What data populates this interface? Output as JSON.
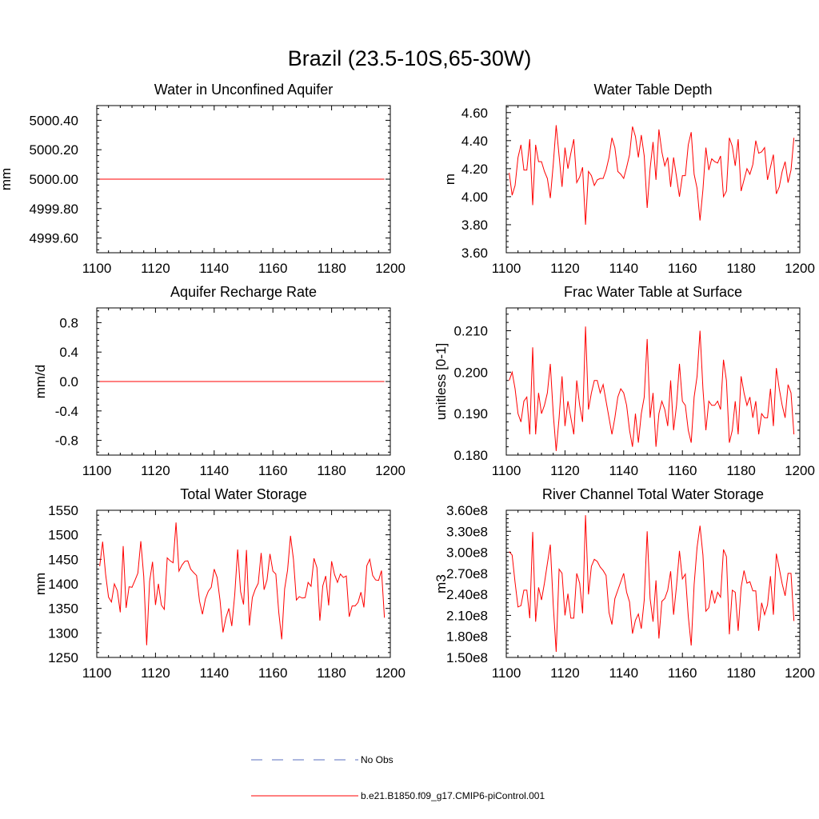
{
  "figure_title": "Brazil (23.5-10S,65-30W)",
  "colors": {
    "model": "#ff0000",
    "obs": "#5a6fbf",
    "axis": "#000000"
  },
  "legend": {
    "obs_label": "No Obs",
    "model_label": "b.e21.B1850.f09_g17.CMIP6-piControl.001"
  },
  "chart_data": [
    {
      "type": "line",
      "title": "Water in Unconfined Aquifer",
      "xlabel": "",
      "ylabel": "mm",
      "xlim": [
        1100,
        1200
      ],
      "ylim": [
        4999.5,
        5000.5
      ],
      "xticks": [
        1100,
        1120,
        1140,
        1160,
        1180,
        1200
      ],
      "xtick_labels": [
        "1100",
        "1120",
        "1140",
        "1160",
        "1180",
        "1200"
      ],
      "yticks": [
        4999.6,
        4999.8,
        5000.0,
        5000.2,
        5000.4
      ],
      "ytick_labels": [
        "4999.60",
        "4999.80",
        "5000.00",
        "5000.20",
        "5000.40"
      ],
      "x_start": 1101,
      "series": [
        {
          "name": "b.e21.B1850.f09_g17.CMIP6-piControl.001",
          "values": [
            5000,
            5000,
            5000,
            5000,
            5000,
            5000,
            5000,
            5000,
            5000,
            5000,
            5000,
            5000,
            5000,
            5000,
            5000,
            5000,
            5000,
            5000,
            5000,
            5000,
            5000,
            5000,
            5000,
            5000,
            5000,
            5000,
            5000,
            5000,
            5000,
            5000,
            5000,
            5000,
            5000,
            5000,
            5000,
            5000,
            5000,
            5000,
            5000,
            5000,
            5000,
            5000,
            5000,
            5000,
            5000,
            5000,
            5000,
            5000,
            5000,
            5000,
            5000,
            5000,
            5000,
            5000,
            5000,
            5000,
            5000,
            5000,
            5000,
            5000,
            5000,
            5000,
            5000,
            5000,
            5000,
            5000,
            5000,
            5000,
            5000,
            5000,
            5000,
            5000,
            5000,
            5000,
            5000,
            5000,
            5000,
            5000,
            5000,
            5000,
            5000,
            5000,
            5000,
            5000,
            5000,
            5000,
            5000,
            5000,
            5000,
            5000,
            5000,
            5000,
            5000,
            5000,
            5000,
            5000,
            5000,
            5000
          ]
        }
      ]
    },
    {
      "type": "line",
      "title": "Water Table Depth",
      "xlabel": "",
      "ylabel": "m",
      "xlim": [
        1100,
        1200
      ],
      "ylim": [
        3.6,
        4.65
      ],
      "xticks": [
        1100,
        1120,
        1140,
        1160,
        1180,
        1200
      ],
      "xtick_labels": [
        "1100",
        "1120",
        "1140",
        "1160",
        "1180",
        "1200"
      ],
      "yticks": [
        3.6,
        3.8,
        4.0,
        4.2,
        4.4,
        4.6
      ],
      "ytick_labels": [
        "3.60",
        "3.80",
        "4.00",
        "4.20",
        "4.40",
        "4.60"
      ],
      "x_start": 1101,
      "series": [
        {
          "name": "b.e21.B1850.f09_g17.CMIP6-piControl.001",
          "values": [
            4.17,
            4.01,
            4.08,
            4.28,
            4.37,
            4.19,
            4.19,
            4.41,
            3.94,
            4.37,
            4.25,
            4.25,
            4.18,
            4.13,
            3.99,
            4.23,
            4.51,
            4.29,
            4.07,
            4.35,
            4.2,
            4.31,
            4.41,
            4.1,
            4.14,
            4.21,
            3.8,
            4.18,
            4.15,
            4.08,
            4.12,
            4.13,
            4.13,
            4.19,
            4.28,
            4.42,
            4.35,
            4.18,
            4.16,
            4.13,
            4.21,
            4.3,
            4.5,
            4.43,
            4.28,
            4.44,
            4.29,
            3.92,
            4.2,
            4.39,
            4.12,
            4.48,
            4.32,
            4.22,
            4.28,
            4.07,
            4.28,
            4.14,
            4.0,
            4.15,
            4.15,
            4.37,
            4.46,
            4.16,
            4.06,
            3.83,
            4.05,
            4.35,
            4.19,
            4.27,
            4.25,
            4.24,
            4.29,
            4.0,
            4.04,
            4.42,
            4.36,
            4.22,
            4.41,
            4.04,
            4.12,
            4.2,
            4.16,
            4.23,
            4.4,
            4.31,
            4.32,
            4.35,
            4.12,
            4.21,
            4.3,
            4.02,
            4.07,
            4.18,
            4.25,
            4.1,
            4.19,
            4.42
          ]
        }
      ]
    },
    {
      "type": "line",
      "title": "Aquifer Recharge Rate",
      "xlabel": "",
      "ylabel": "mm/d",
      "xlim": [
        1100,
        1200
      ],
      "ylim": [
        -1.0,
        1.0
      ],
      "xticks": [
        1100,
        1120,
        1140,
        1160,
        1180,
        1200
      ],
      "xtick_labels": [
        "1100",
        "1120",
        "1140",
        "1160",
        "1180",
        "1200"
      ],
      "yticks": [
        -0.8,
        -0.4,
        0.0,
        0.4,
        0.8
      ],
      "ytick_labels": [
        "-0.8",
        "-0.4",
        "0.0",
        "0.4",
        "0.8"
      ],
      "x_start": 1101,
      "series": [
        {
          "name": "b.e21.B1850.f09_g17.CMIP6-piControl.001",
          "values": [
            0,
            0,
            0,
            0,
            0,
            0,
            0,
            0,
            0,
            0,
            0,
            0,
            0,
            0,
            0,
            0,
            0,
            0,
            0,
            0,
            0,
            0,
            0,
            0,
            0,
            0,
            0,
            0,
            0,
            0,
            0,
            0,
            0,
            0,
            0,
            0,
            0,
            0,
            0,
            0,
            0,
            0,
            0,
            0,
            0,
            0,
            0,
            0,
            0,
            0,
            0,
            0,
            0,
            0,
            0,
            0,
            0,
            0,
            0,
            0,
            0,
            0,
            0,
            0,
            0,
            0,
            0,
            0,
            0,
            0,
            0,
            0,
            0,
            0,
            0,
            0,
            0,
            0,
            0,
            0,
            0,
            0,
            0,
            0,
            0,
            0,
            0,
            0,
            0,
            0,
            0,
            0,
            0,
            0,
            0,
            0,
            0,
            0
          ]
        }
      ]
    },
    {
      "type": "line",
      "title": "Frac Water Table at Surface",
      "xlabel": "",
      "ylabel": "unitless [0-1]",
      "xlim": [
        1100,
        1200
      ],
      "ylim": [
        0.18,
        0.2155
      ],
      "xticks": [
        1100,
        1120,
        1140,
        1160,
        1180,
        1200
      ],
      "xtick_labels": [
        "1100",
        "1120",
        "1140",
        "1160",
        "1180",
        "1200"
      ],
      "yticks": [
        0.18,
        0.19,
        0.2,
        0.21
      ],
      "ytick_labels": [
        "0.180",
        "0.190",
        "0.200",
        "0.210"
      ],
      "x_start": 1101,
      "series": [
        {
          "name": "b.e21.B1850.f09_g17.CMIP6-piControl.001",
          "values": [
            0.198,
            0.2,
            0.196,
            0.19,
            0.188,
            0.193,
            0.194,
            0.185,
            0.206,
            0.185,
            0.195,
            0.19,
            0.192,
            0.195,
            0.202,
            0.19,
            0.181,
            0.189,
            0.199,
            0.187,
            0.193,
            0.189,
            0.185,
            0.198,
            0.192,
            0.188,
            0.211,
            0.191,
            0.195,
            0.198,
            0.198,
            0.195,
            0.197,
            0.193,
            0.189,
            0.185,
            0.189,
            0.194,
            0.196,
            0.195,
            0.192,
            0.186,
            0.182,
            0.19,
            0.183,
            0.19,
            0.194,
            0.208,
            0.189,
            0.195,
            0.182,
            0.19,
            0.193,
            0.191,
            0.187,
            0.198,
            0.186,
            0.192,
            0.202,
            0.193,
            0.192,
            0.186,
            0.183,
            0.194,
            0.199,
            0.21,
            0.196,
            0.186,
            0.193,
            0.192,
            0.192,
            0.193,
            0.191,
            0.203,
            0.198,
            0.183,
            0.186,
            0.193,
            0.185,
            0.199,
            0.195,
            0.192,
            0.194,
            0.189,
            0.193,
            0.185,
            0.19,
            0.189,
            0.189,
            0.196,
            0.187,
            0.201,
            0.196,
            0.192,
            0.189,
            0.197,
            0.195,
            0.185
          ]
        }
      ]
    },
    {
      "type": "line",
      "title": "Total Water Storage",
      "xlabel": "",
      "ylabel": "mm",
      "xlim": [
        1100,
        1200
      ],
      "ylim": [
        1250,
        1550
      ],
      "xticks": [
        1100,
        1120,
        1140,
        1160,
        1180,
        1200
      ],
      "xtick_labels": [
        "1100",
        "1120",
        "1140",
        "1160",
        "1180",
        "1200"
      ],
      "yticks": [
        1250,
        1300,
        1350,
        1400,
        1450,
        1500,
        1550
      ],
      "ytick_labels": [
        "1250",
        "1300",
        "1350",
        "1400",
        "1450",
        "1500",
        "1550"
      ],
      "x_start": 1101,
      "series": [
        {
          "name": "b.e21.B1850.f09_g17.CMIP6-piControl.001",
          "values": [
            1436,
            1486,
            1420,
            1373,
            1363,
            1400,
            1386,
            1342,
            1477,
            1351,
            1394,
            1393,
            1407,
            1422,
            1487,
            1415,
            1275,
            1405,
            1445,
            1357,
            1400,
            1357,
            1348,
            1453,
            1447,
            1443,
            1525,
            1426,
            1438,
            1446,
            1447,
            1430,
            1423,
            1417,
            1365,
            1338,
            1369,
            1385,
            1393,
            1430,
            1413,
            1366,
            1301,
            1331,
            1350,
            1314,
            1378,
            1470,
            1384,
            1358,
            1469,
            1315,
            1372,
            1389,
            1401,
            1463,
            1388,
            1408,
            1461,
            1426,
            1420,
            1342,
            1287,
            1390,
            1428,
            1498,
            1450,
            1367,
            1374,
            1371,
            1372,
            1403,
            1395,
            1452,
            1433,
            1325,
            1396,
            1416,
            1356,
            1446,
            1419,
            1403,
            1420,
            1413,
            1416,
            1333,
            1355,
            1355,
            1362,
            1383,
            1352,
            1437,
            1450,
            1417,
            1408,
            1407,
            1427,
            1331
          ]
        }
      ]
    },
    {
      "type": "line",
      "title": "River Channel Total Water Storage",
      "xlabel": "",
      "ylabel": "m3",
      "xlim": [
        1100,
        1200
      ],
      "ylim": [
        150000000,
        360000000
      ],
      "xticks": [
        1100,
        1120,
        1140,
        1160,
        1180,
        1200
      ],
      "xtick_labels": [
        "1100",
        "1120",
        "1140",
        "1160",
        "1180",
        "1200"
      ],
      "yticks": [
        150000000,
        180000000,
        210000000,
        240000000,
        270000000,
        300000000,
        330000000,
        360000000
      ],
      "ytick_labels": [
        "1.50e8",
        "1.80e8",
        "2.10e8",
        "2.40e8",
        "2.70e8",
        "3.00e8",
        "3.30e8",
        "3.60e8"
      ],
      "x_start": 1101,
      "series": [
        {
          "name": "b.e21.B1850.f09_g17.CMIP6-piControl.001",
          "values": [
            301000000,
            296000000,
            257000000,
            222000000,
            224000000,
            246000000,
            246000000,
            206000000,
            329000000,
            201000000,
            250000000,
            232000000,
            256000000,
            284000000,
            311000000,
            225000000,
            158000000,
            276000000,
            270000000,
            210000000,
            241000000,
            206000000,
            206000000,
            270000000,
            256000000,
            213000000,
            353000000,
            240000000,
            280000000,
            290000000,
            287000000,
            279000000,
            274000000,
            267000000,
            214000000,
            197000000,
            234000000,
            246000000,
            258000000,
            270000000,
            243000000,
            229000000,
            184000000,
            203000000,
            212000000,
            191000000,
            232000000,
            330000000,
            234000000,
            201000000,
            260000000,
            177000000,
            230000000,
            234000000,
            246000000,
            273000000,
            211000000,
            252000000,
            302000000,
            262000000,
            269000000,
            209000000,
            167000000,
            254000000,
            307000000,
            338000000,
            296000000,
            216000000,
            221000000,
            246000000,
            227000000,
            243000000,
            236000000,
            304000000,
            294000000,
            183000000,
            246000000,
            243000000,
            188000000,
            250000000,
            274000000,
            256000000,
            258000000,
            245000000,
            245000000,
            188000000,
            228000000,
            211000000,
            225000000,
            266000000,
            211000000,
            298000000,
            277000000,
            255000000,
            238000000,
            270000000,
            270000000,
            202000000
          ]
        }
      ]
    }
  ]
}
